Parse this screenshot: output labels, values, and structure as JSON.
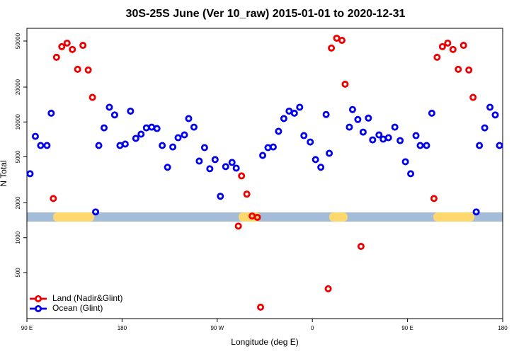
{
  "chart_data": {
    "type": "scatter",
    "title": "30S-25S June (Ver 10_raw)   2015-01-01 to 2020-12-31",
    "x_label": "Longitude (deg E)",
    "y_label": "N Total",
    "xlim": [
      90,
      540
    ],
    "ylim": [
      200,
      64400
    ],
    "y_log": true,
    "legend": "bottom-left",
    "xticks": [
      {
        "value": 90,
        "label": "90 E"
      },
      180,
      {
        "value": 270,
        "label": "90 W"
      },
      {
        "value": 360,
        "label": "0"
      },
      {
        "value": 450,
        "label": "90 E"
      },
      {
        "value": 540,
        "label": "180"
      }
    ],
    "yticks": [
      500,
      1000,
      2000,
      5000,
      10000,
      20000,
      50000
    ],
    "series": [
      {
        "name": "Land (Nadir&Glint)",
        "color": "#ee0000",
        "x": [
          115,
          118,
          123,
          128,
          133,
          138,
          143,
          148,
          152,
          290,
          293,
          298,
          303,
          308,
          311,
          375,
          378,
          383,
          388,
          391,
          406,
          475,
          478,
          483,
          488,
          493,
          498,
          503,
          508,
          512
        ],
        "values": [
          2180,
          36200,
          44700,
          48000,
          42300,
          28500,
          45900,
          28100,
          16300,
          1260,
          3420,
          2380,
          1540,
          1500,
          251,
          362,
          43500,
          52900,
          50700,
          21200,
          841,
          2180,
          36200,
          44700,
          48000,
          42300,
          28500,
          45900,
          28100,
          16300
        ]
      },
      {
        "name": "Ocean (Glint)",
        "color": "#0000ee",
        "x": [
          93,
          98,
          103,
          109,
          113,
          155,
          158,
          163,
          168,
          173,
          178,
          183,
          188,
          193,
          198,
          203,
          208,
          213,
          218,
          223,
          228,
          233,
          239,
          243,
          248,
          253,
          258,
          263,
          268,
          273,
          278,
          284,
          288,
          313,
          318,
          323,
          328,
          333,
          338,
          343,
          348,
          352,
          358,
          363,
          368,
          373,
          376,
          395,
          398,
          403,
          408,
          413,
          417,
          423,
          427,
          432,
          438,
          443,
          448,
          453,
          458,
          462,
          468,
          473,
          515,
          518,
          523,
          528,
          533,
          537
        ],
        "values": [
          3570,
          7510,
          6260,
          6260,
          11900,
          1670,
          6260,
          8890,
          13400,
          11500,
          6260,
          6440,
          12400,
          7210,
          7840,
          8890,
          9020,
          8770,
          6260,
          4060,
          6080,
          7310,
          7730,
          10700,
          9020,
          4590,
          6000,
          3940,
          4730,
          2280,
          4110,
          4470,
          3990,
          5140,
          6000,
          6080,
          8300,
          10700,
          12400,
          11900,
          13400,
          7620,
          6710,
          4730,
          4060,
          11600,
          5360,
          9020,
          12800,
          10500,
          8170,
          10800,
          7000,
          7730,
          7100,
          7310,
          9020,
          6900,
          4530,
          3570,
          7620,
          6260,
          6260,
          11900,
          1670,
          6260,
          8890,
          13400,
          11500,
          6260
        ]
      }
    ]
  }
}
